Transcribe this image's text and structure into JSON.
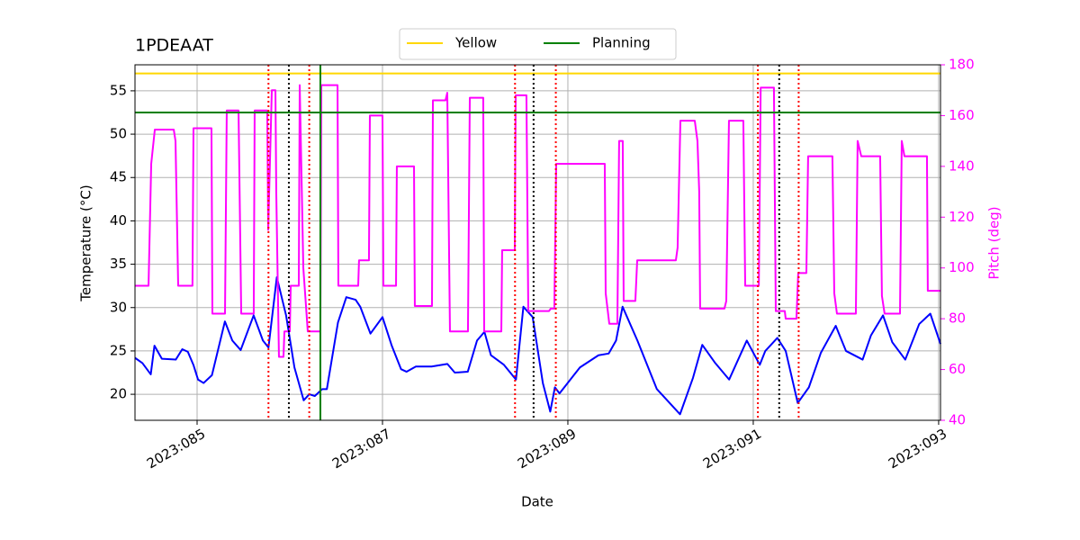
{
  "chart_data": {
    "type": "line",
    "title": "1PDEAAT",
    "xlabel": "Date",
    "ylabel": "Temperature (°C)",
    "y2label": "Pitch (deg)",
    "xlim": [
      84.33,
      93.02
    ],
    "xticks": [
      {
        "value": 85,
        "label": "2023:085"
      },
      {
        "value": 87,
        "label": "2023:087"
      },
      {
        "value": 89,
        "label": "2023:089"
      },
      {
        "value": 91,
        "label": "2023:091"
      },
      {
        "value": 93,
        "label": "2023:093"
      }
    ],
    "ylim": [
      17,
      58
    ],
    "yticks": [
      20,
      25,
      30,
      35,
      40,
      45,
      50,
      55
    ],
    "y2lim": [
      40,
      180
    ],
    "y2ticks": [
      40,
      60,
      80,
      100,
      120,
      140,
      160,
      180
    ],
    "y2color": "#ff00ff",
    "grid": true,
    "legend": "upper center",
    "series": [
      {
        "color": "#0000ff",
        "x": [
          84.33,
          84.41,
          84.5,
          84.54,
          84.62,
          84.77,
          84.84,
          84.9,
          84.96,
          85.01,
          85.07,
          85.16,
          85.3,
          85.38,
          85.47,
          85.61,
          85.71,
          85.77,
          85.86,
          85.96,
          86.05,
          86.15,
          86.21,
          86.27,
          86.35,
          86.4,
          86.52,
          86.61,
          86.71,
          86.76,
          86.87,
          87.0,
          87.1,
          87.2,
          87.26,
          87.36,
          87.53,
          87.7,
          87.78,
          87.92,
          88.02,
          88.1,
          88.17,
          88.31,
          88.44,
          88.52,
          88.62,
          88.73,
          88.81,
          88.86,
          88.91,
          89.13,
          89.33,
          89.44,
          89.52,
          89.59,
          89.75,
          89.96,
          90.21,
          90.35,
          90.45,
          90.59,
          90.74,
          90.93,
          91.07,
          91.13,
          91.26,
          91.35,
          91.48,
          91.6,
          91.73,
          91.89,
          92.0,
          92.18,
          92.27,
          92.4,
          92.5,
          92.64,
          92.79,
          92.91,
          93.02
        ],
        "values": [
          24.2,
          23.6,
          22.3,
          25.6,
          24.1,
          24.0,
          25.2,
          24.9,
          23.4,
          21.7,
          21.3,
          22.2,
          28.4,
          26.2,
          25.1,
          29.1,
          26.2,
          25.4,
          33.5,
          29.1,
          23.1,
          19.3,
          20.0,
          19.8,
          20.6,
          20.6,
          28.3,
          31.2,
          30.9,
          30.1,
          27.0,
          28.9,
          25.6,
          22.9,
          22.6,
          23.2,
          23.2,
          23.5,
          22.5,
          22.6,
          26.2,
          27.2,
          24.5,
          23.4,
          21.7,
          30.1,
          28.9,
          21.3,
          18.0,
          20.8,
          20.1,
          23.1,
          24.5,
          24.7,
          26.2,
          30.1,
          26.2,
          20.6,
          17.7,
          21.9,
          25.7,
          23.6,
          21.7,
          26.2,
          23.4,
          25.0,
          26.5,
          25.0,
          19.0,
          20.8,
          24.8,
          27.9,
          25.0,
          24.0,
          26.8,
          29.1,
          26.0,
          24.0,
          28.1,
          29.3,
          25.8
        ]
      },
      {
        "color": "#ff00ff",
        "axis": "y2",
        "x": [
          84.33,
          84.476,
          84.505,
          84.544,
          84.748,
          84.767,
          84.796,
          84.95,
          84.961,
          85.155,
          85.165,
          85.301,
          85.32,
          85.447,
          85.476,
          85.611,
          85.621,
          85.757,
          85.767,
          85.806,
          85.845,
          85.854,
          85.883,
          85.932,
          85.942,
          86.0,
          86.01,
          86.097,
          86.107,
          86.146,
          86.194,
          86.33,
          86.34,
          86.515,
          86.524,
          86.738,
          86.747,
          86.854,
          86.864,
          87.0,
          87.01,
          87.146,
          87.155,
          87.34,
          87.349,
          87.534,
          87.544,
          87.68,
          87.699,
          87.728,
          87.922,
          87.942,
          88.087,
          88.097,
          88.282,
          88.291,
          88.427,
          88.437,
          88.553,
          88.573,
          88.796,
          88.816,
          88.854,
          88.874,
          89.398,
          89.408,
          89.447,
          89.534,
          89.553,
          89.592,
          89.602,
          89.728,
          89.748,
          90.165,
          90.184,
          90.214,
          90.369,
          90.398,
          90.417,
          90.427,
          90.689,
          90.709,
          90.738,
          90.893,
          90.913,
          91.06,
          91.08,
          91.223,
          91.243,
          91.34,
          91.35,
          91.466,
          91.485,
          91.573,
          91.592,
          91.854,
          91.874,
          91.903,
          92.107,
          92.126,
          92.165,
          92.369,
          92.388,
          92.417,
          92.583,
          92.602,
          92.631,
          92.874,
          92.883,
          93.019
        ],
        "values": [
          93,
          93,
          141,
          154.5,
          154.5,
          150,
          93,
          93,
          155,
          155,
          82,
          82,
          162,
          162,
          82,
          82,
          162,
          162,
          115,
          170,
          170,
          130,
          65,
          65,
          75,
          75,
          93,
          93,
          172,
          100,
          75,
          75,
          172,
          172,
          93,
          93,
          103,
          103,
          160,
          160,
          93,
          93,
          140,
          140,
          85,
          85,
          166,
          166,
          169,
          75,
          75,
          167,
          167,
          75,
          75,
          107,
          107,
          168,
          168,
          83,
          83,
          84,
          84,
          141,
          141,
          90,
          78,
          78,
          150,
          150,
          87,
          87,
          103,
          103,
          108,
          158,
          158,
          150,
          130,
          84,
          84,
          87,
          158,
          158,
          93,
          93,
          171,
          171,
          83,
          83,
          80,
          80,
          98,
          98,
          144,
          144,
          90,
          82,
          82,
          150,
          144,
          144,
          89,
          82,
          82,
          150,
          144,
          144,
          91,
          91
        ]
      }
    ],
    "hlines": [
      {
        "name": "Yellow",
        "value": 57,
        "color": "#ffd700"
      },
      {
        "name": "Planning",
        "value": 52.5,
        "color": "#008000"
      }
    ],
    "vlines": [
      {
        "color": "#008000",
        "dash": "solid",
        "x": [
          86.33
        ]
      },
      {
        "color": "#ff0000",
        "dash": "dotted",
        "x": [
          85.77,
          86.21,
          88.43,
          88.87,
          91.05,
          91.49
        ]
      },
      {
        "color": "#000000",
        "dash": "dotted",
        "x": [
          85.99,
          88.63,
          91.28
        ]
      }
    ]
  }
}
